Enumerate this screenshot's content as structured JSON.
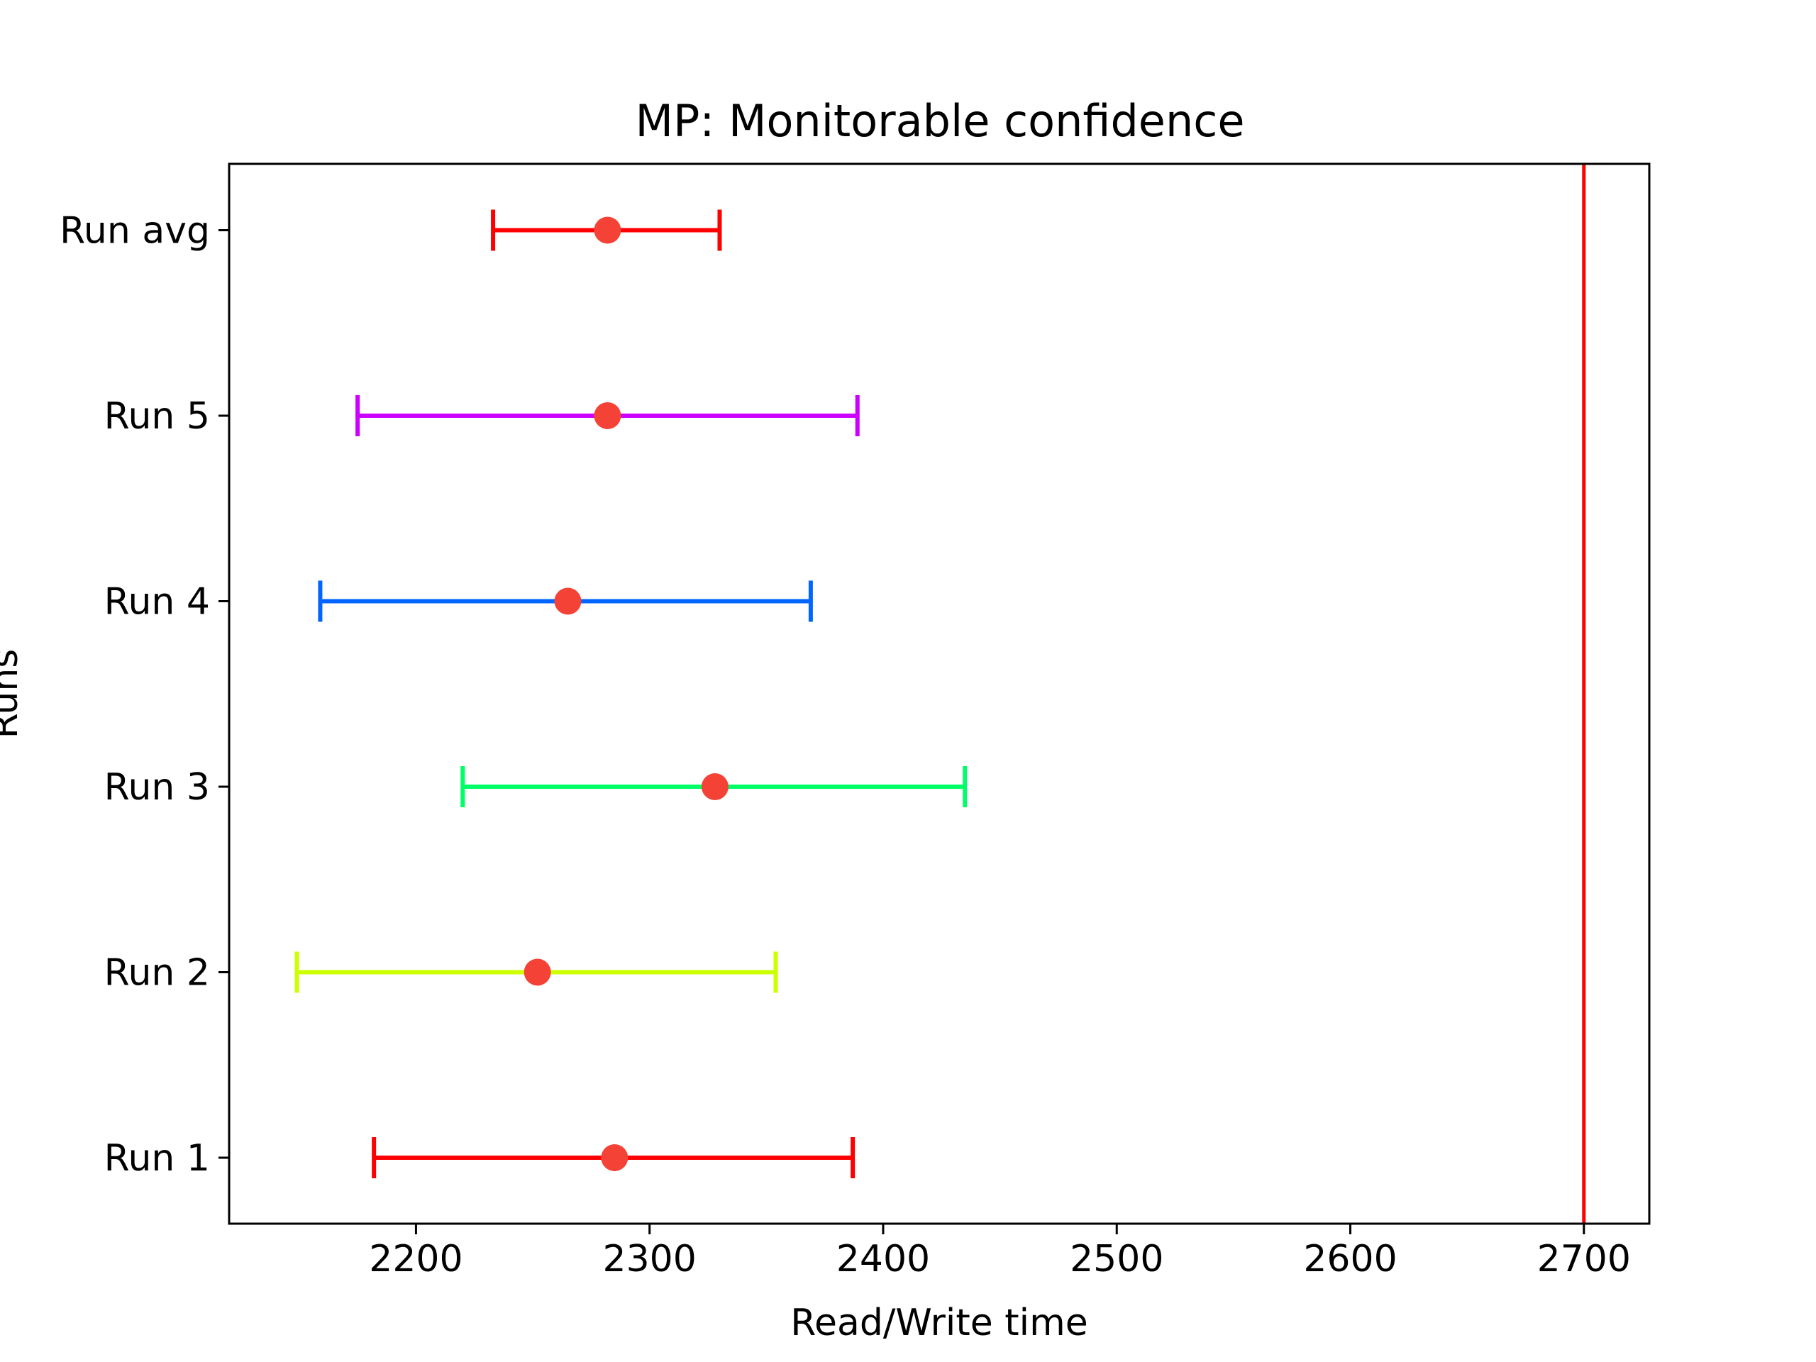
{
  "chart_data": {
    "type": "errorbar",
    "title": "MP: Monitorable confidence",
    "xlabel": "Read/Write time",
    "ylabel": "Runs",
    "xlim": [
      2120,
      2728
    ],
    "xticks": [
      2200,
      2300,
      2400,
      2500,
      2600,
      2700
    ],
    "xtick_labels": [
      "2200",
      "2300",
      "2400",
      "2500",
      "2600",
      "2700"
    ],
    "grid": false,
    "legend": null,
    "categories": [
      "Run 1",
      "Run 2",
      "Run 3",
      "Run 4",
      "Run 5",
      "Run avg"
    ],
    "series": [
      {
        "label": "Run 1",
        "mean": 2285,
        "low": 2182,
        "high": 2387,
        "color": "#ff0000"
      },
      {
        "label": "Run 2",
        "mean": 2252,
        "low": 2149,
        "high": 2354,
        "color": "#ccff00"
      },
      {
        "label": "Run 3",
        "mean": 2328,
        "low": 2220,
        "high": 2435,
        "color": "#00ff66"
      },
      {
        "label": "Run 4",
        "mean": 2265,
        "low": 2159,
        "high": 2369,
        "color": "#0066ff"
      },
      {
        "label": "Run 5",
        "mean": 2282,
        "low": 2175,
        "high": 2389,
        "color": "#cc00ff"
      },
      {
        "label": "Run avg",
        "mean": 2282,
        "low": 2233,
        "high": 2330,
        "color": "#ff0000"
      }
    ],
    "marker_color": "#f44336",
    "reference_line": {
      "x": 2700,
      "color": "#ff0000"
    }
  }
}
